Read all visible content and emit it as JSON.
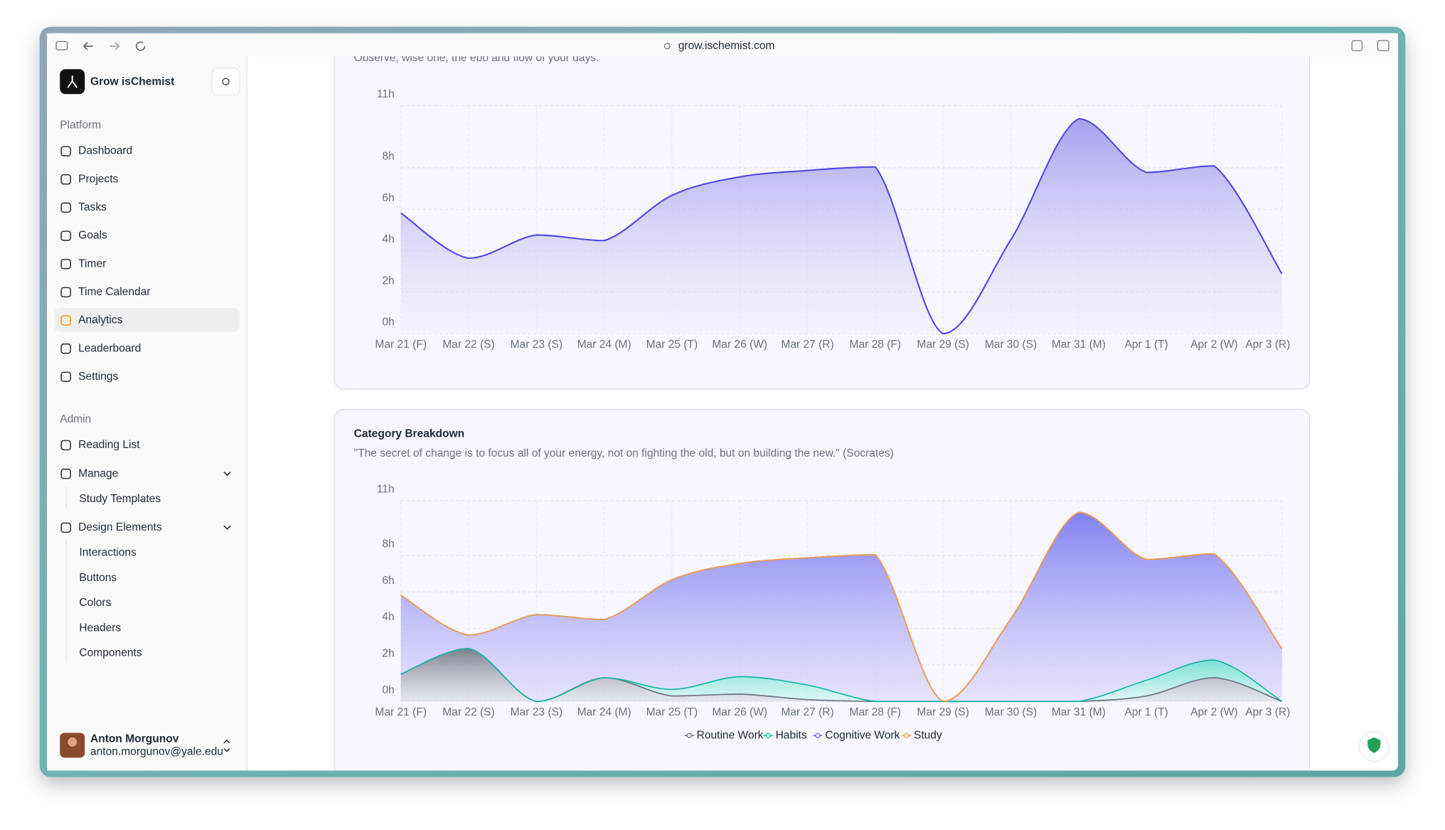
{
  "browser": {
    "url": "grow.ischemist.com"
  },
  "sidebar": {
    "app_name": "Grow isChemist",
    "platform": {
      "label": "Platform",
      "items": [
        "Dashboard",
        "Projects",
        "Tasks",
        "Goals",
        "Timer",
        "Time Calendar",
        "Analytics",
        "Leaderboard",
        "Settings"
      ]
    },
    "admin": {
      "label": "Admin",
      "items": [
        {
          "label": "Reading List",
          "children": []
        },
        {
          "label": "Manage",
          "children": [
            "Study Templates"
          ]
        },
        {
          "label": "Design Elements",
          "children": [
            "Interactions",
            "Buttons",
            "Colors",
            "Headers",
            "Components"
          ]
        }
      ]
    },
    "user": {
      "name": "Anton Morgunov",
      "email": "anton.morgunov@yale.edu"
    }
  },
  "chart_data": [
    {
      "type": "area",
      "subtitle": "Observe, wise one, the ebb and flow of your days.",
      "categories": [
        "Mar 21 (F)",
        "Mar 22 (S)",
        "Mar 23 (S)",
        "Mar 24 (M)",
        "Mar 25 (T)",
        "Mar 26 (W)",
        "Mar 27 (R)",
        "Mar 28 (F)",
        "Mar 29 (S)",
        "Mar 30 (S)",
        "Mar 31 (M)",
        "Apr 1 (T)",
        "Apr 2 (W)",
        "Apr 3 (R)"
      ],
      "values": [
        5.82,
        3.64,
        4.76,
        4.49,
        6.67,
        7.56,
        7.87,
        8.04,
        0,
        4.53,
        10.36,
        7.78,
        8.09,
        2.89
      ],
      "color": "#4f46e5",
      "ylim": [
        0,
        11
      ],
      "yticks": [
        {
          "value": 0,
          "label": "0h"
        },
        {
          "value": 2,
          "label": "2h"
        },
        {
          "value": 4,
          "label": "4h"
        },
        {
          "value": 6,
          "label": "6h"
        },
        {
          "value": 8,
          "label": "8h"
        },
        {
          "value": 11,
          "label": "11h"
        }
      ],
      "grid": true
    },
    {
      "type": "stacked-area",
      "title": "Category Breakdown",
      "subtitle": "\"The secret of change is to focus all of your energy, not on fighting the old, but on building the new.\" (Socrates)",
      "categories": [
        "Mar 21 (F)",
        "Mar 22 (S)",
        "Mar 23 (S)",
        "Mar 24 (M)",
        "Mar 25 (T)",
        "Mar 26 (W)",
        "Mar 27 (R)",
        "Mar 28 (F)",
        "Mar 29 (S)",
        "Mar 30 (S)",
        "Mar 31 (M)",
        "Apr 1 (T)",
        "Apr 2 (W)",
        "Apr 3 (R)"
      ],
      "series": [
        {
          "name": "Routine Work",
          "color": "#6b7280",
          "values": [
            1.5,
            2.9,
            0,
            1.3,
            0.3,
            0.4,
            0.1,
            0,
            0,
            0,
            0,
            0.3,
            1.3,
            0
          ]
        },
        {
          "name": "Habits",
          "color": "#14b8a6",
          "values": [
            0,
            0,
            0,
            0,
            0.36,
            0.96,
            0.8,
            0,
            0,
            0,
            0,
            0.86,
            0.97,
            0
          ]
        },
        {
          "name": "Cognitive Work",
          "color": "#6366f1",
          "values": [
            4.32,
            0.74,
            4.76,
            3.19,
            6.01,
            6.2,
            6.97,
            8.04,
            0,
            4.53,
            10.36,
            6.62,
            5.82,
            2.89
          ]
        },
        {
          "name": "Study",
          "color": "#f59e42",
          "values": [
            0,
            0,
            0,
            0,
            0,
            0,
            0,
            0,
            0,
            0,
            0,
            0,
            0,
            0
          ]
        }
      ],
      "ylim": [
        0,
        11
      ],
      "yticks": [
        {
          "value": 0,
          "label": "0h"
        },
        {
          "value": 2,
          "label": "2h"
        },
        {
          "value": 4,
          "label": "4h"
        },
        {
          "value": 6,
          "label": "6h"
        },
        {
          "value": 8,
          "label": "8h"
        },
        {
          "value": 11,
          "label": "11h"
        }
      ],
      "grid": true,
      "legend": "bottom"
    }
  ]
}
